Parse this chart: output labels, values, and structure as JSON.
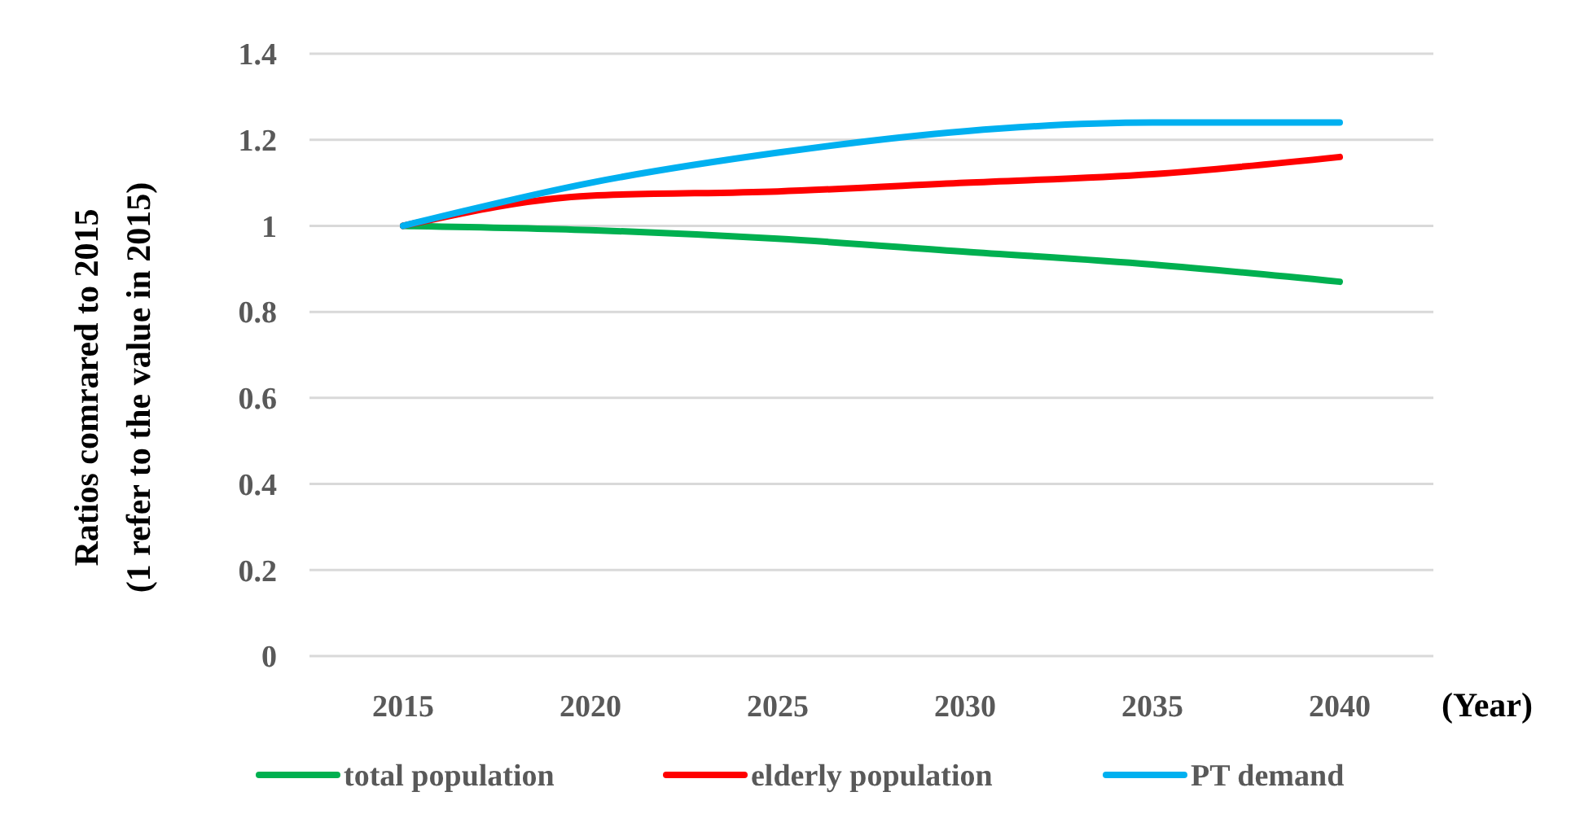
{
  "chart_data": {
    "type": "line",
    "xlabel": "(Year)",
    "ylabel": "Ratios comrared to 2015\n(1 refer to the value in 2015)",
    "categories": [
      "2015",
      "2020",
      "2025",
      "2030",
      "2035",
      "2040"
    ],
    "series": [
      {
        "name": "total population",
        "color": "#00b050",
        "values": [
          1,
          0.99,
          0.97,
          0.94,
          0.91,
          0.87
        ]
      },
      {
        "name": "elderly population",
        "color": "#ff0000",
        "values": [
          1,
          1.07,
          1.08,
          1.1,
          1.12,
          1.16
        ]
      },
      {
        "name": "PT demand",
        "color": "#00b0f0",
        "values": [
          1,
          1.1,
          1.17,
          1.22,
          1.24,
          1.24
        ]
      }
    ],
    "ylim": [
      0,
      1.4
    ],
    "yticks": [
      0,
      0.2,
      0.4,
      0.6,
      0.8,
      1,
      1.2,
      1.4
    ],
    "grid": "y",
    "legend": "bottom",
    "marker": "none",
    "line_style": "solid"
  }
}
